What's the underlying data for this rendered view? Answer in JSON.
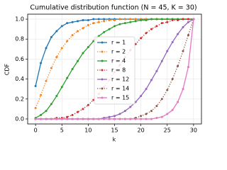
{
  "chart_data": {
    "type": "line",
    "title": "Cumulative distribution function (N = 45, K = 30)",
    "x_label": "k",
    "y_label": "CDF",
    "x": [
      0,
      1,
      2,
      3,
      4,
      5,
      6,
      7,
      8,
      9,
      10,
      11,
      12,
      13,
      14,
      15,
      16,
      17,
      18,
      19,
      20,
      21,
      22,
      23,
      24,
      25,
      26,
      27,
      28,
      29,
      30
    ],
    "series": [
      {
        "name": "r = 1",
        "color": "#1f77b4",
        "linestyle": "solid",
        "values": [
          0.33,
          0.56,
          0.71,
          0.82,
          0.88,
          0.93,
          0.96,
          0.97,
          0.98,
          0.99,
          0.99,
          1,
          1,
          1,
          1,
          1,
          1,
          1,
          1,
          1,
          1,
          1,
          1,
          1,
          1,
          1,
          1,
          1,
          1,
          1,
          1
        ]
      },
      {
        "name": "r = 2",
        "color": "#ff7f0e",
        "linestyle": "dotted",
        "values": [
          0.11,
          0.24,
          0.38,
          0.51,
          0.62,
          0.71,
          0.78,
          0.84,
          0.88,
          0.91,
          0.94,
          0.96,
          0.97,
          0.98,
          0.99,
          0.99,
          1,
          1,
          1,
          1,
          1,
          1,
          1,
          1,
          1,
          1,
          1,
          1,
          1,
          1,
          1
        ]
      },
      {
        "name": "r = 4",
        "color": "#2ca02c",
        "linestyle": "solid",
        "values": [
          0.01,
          0.04,
          0.08,
          0.15,
          0.23,
          0.32,
          0.41,
          0.5,
          0.58,
          0.66,
          0.72,
          0.78,
          0.83,
          0.87,
          0.9,
          0.93,
          0.95,
          0.96,
          0.97,
          0.98,
          0.99,
          0.99,
          1,
          1,
          1,
          1,
          1,
          1,
          1,
          1,
          1
        ]
      },
      {
        "name": "r = 8",
        "color": "#d62728",
        "linestyle": "dotted",
        "values": [
          0,
          0,
          0,
          0,
          0.01,
          0.01,
          0.02,
          0.04,
          0.07,
          0.1,
          0.14,
          0.19,
          0.25,
          0.32,
          0.39,
          0.47,
          0.54,
          0.62,
          0.69,
          0.75,
          0.81,
          0.86,
          0.9,
          0.93,
          0.96,
          0.97,
          0.99,
          0.99,
          1,
          1,
          1
        ]
      },
      {
        "name": "r = 12",
        "color": "#9467bd",
        "linestyle": "solid",
        "values": [
          0,
          0,
          0,
          0,
          0,
          0,
          0,
          0,
          0,
          0,
          0,
          0,
          0,
          0.01,
          0.02,
          0.03,
          0.05,
          0.08,
          0.12,
          0.17,
          0.23,
          0.3,
          0.39,
          0.48,
          0.58,
          0.68,
          0.77,
          0.85,
          0.92,
          0.97,
          1
        ]
      },
      {
        "name": "r = 14",
        "color": "#8c564b",
        "linestyle": "dotted",
        "values": [
          0,
          0,
          0,
          0,
          0,
          0,
          0,
          0,
          0,
          0,
          0,
          0,
          0,
          0,
          0,
          0,
          0,
          0,
          0,
          0.01,
          0.03,
          0.05,
          0.08,
          0.13,
          0.2,
          0.29,
          0.4,
          0.53,
          0.68,
          0.84,
          1
        ]
      },
      {
        "name": "r = 15",
        "color": "#e377c2",
        "linestyle": "solid",
        "values": [
          0,
          0,
          0,
          0,
          0,
          0,
          0,
          0,
          0,
          0,
          0,
          0,
          0,
          0,
          0,
          0,
          0,
          0,
          0,
          0,
          0,
          0,
          0,
          0.01,
          0.02,
          0.05,
          0.09,
          0.17,
          0.3,
          0.52,
          1
        ]
      }
    ],
    "xlim": [
      -1.5,
      31.5
    ],
    "xticks": [
      0,
      5,
      10,
      15,
      20,
      25,
      30
    ],
    "ylim": [
      -0.05,
      1.05
    ],
    "yticks": [
      {
        "value": 0,
        "label": "0.0"
      },
      {
        "value": 0.2,
        "label": "0.2"
      },
      {
        "value": 0.4,
        "label": "0.4"
      },
      {
        "value": 0.6,
        "label": "0.6"
      },
      {
        "value": 0.8,
        "label": "0.8"
      },
      {
        "value": 1,
        "label": "1.0"
      }
    ],
    "grid": true,
    "legend": "center"
  }
}
